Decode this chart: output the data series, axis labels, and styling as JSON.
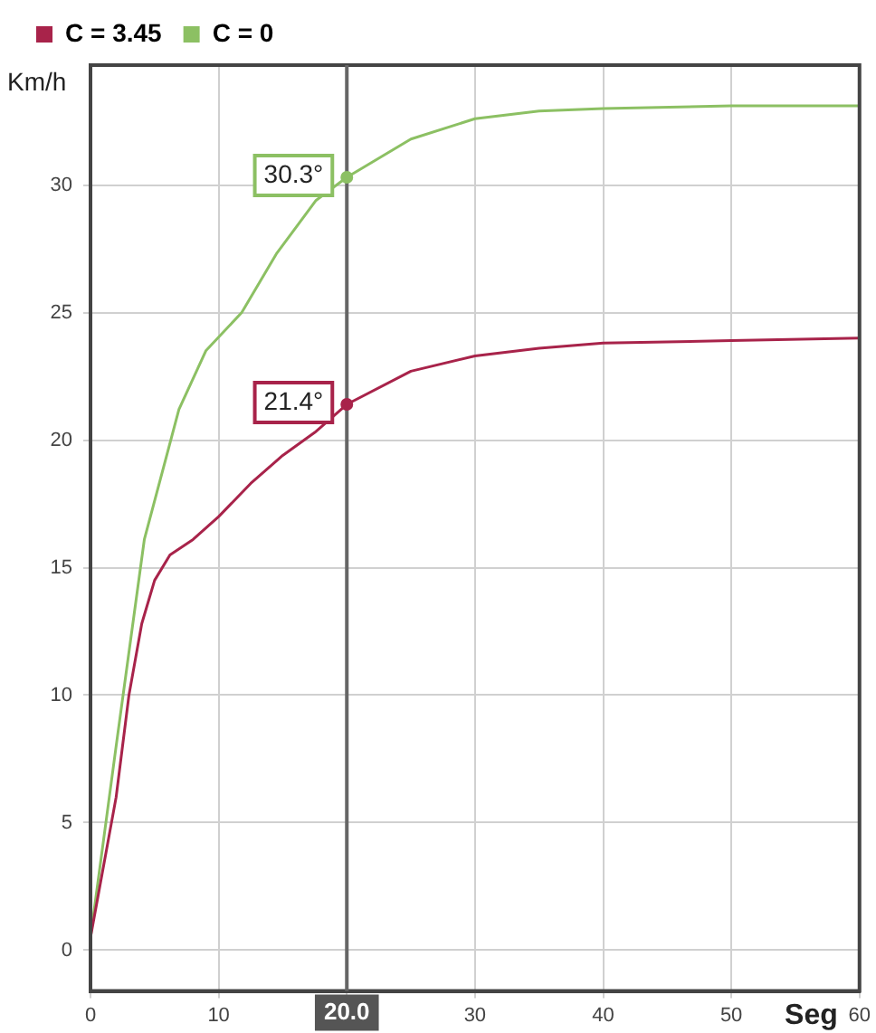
{
  "chart_data": {
    "type": "line",
    "xlabel": "Seg",
    "ylabel": "Km/h",
    "legend": "top left",
    "grid": true,
    "marker": "none",
    "line_style": "solid",
    "xlim": [
      0,
      60
    ],
    "xticks": [
      0,
      10,
      {
        "value": 20,
        "label": null
      },
      30,
      40,
      50,
      60
    ],
    "ylim": [
      -1.6,
      34.7
    ],
    "yticks": [
      0,
      5,
      10,
      15,
      20,
      25,
      30
    ],
    "series": [
      {
        "name": "C = 3.45",
        "color": "#a8234a",
        "x": [
          0,
          2,
          3,
          4,
          5,
          6.2,
          8,
          10,
          12.5,
          15,
          17.5,
          20,
          25,
          30,
          35,
          40,
          50,
          60
        ],
        "values": [
          0.5,
          6,
          10,
          12.8,
          14.5,
          15.5,
          16.1,
          17,
          18.3,
          19.4,
          20.3,
          21.4,
          22.7,
          23.3,
          23.6,
          23.8,
          23.9,
          24
        ]
      },
      {
        "name": "C = 0",
        "color": "#8cc063",
        "x": [
          0,
          2,
          4.2,
          6.9,
          9,
          11.8,
          14.5,
          17.6,
          20,
          25,
          30,
          35,
          40,
          50,
          60
        ],
        "values": [
          0.5,
          8,
          16.1,
          21.2,
          23.5,
          25,
          27.3,
          29.4,
          30.3,
          31.8,
          32.6,
          32.9,
          33,
          33.1,
          33.1
        ]
      }
    ],
    "ref_lines": [
      {
        "axis": "x",
        "value": 20,
        "label": "20.0",
        "color": "#666666"
      }
    ],
    "annotations": [
      {
        "text": "30.3°",
        "x": 20,
        "y": 30.3
      },
      {
        "text": "21.4°",
        "x": 20,
        "y": 21.4
      }
    ]
  }
}
